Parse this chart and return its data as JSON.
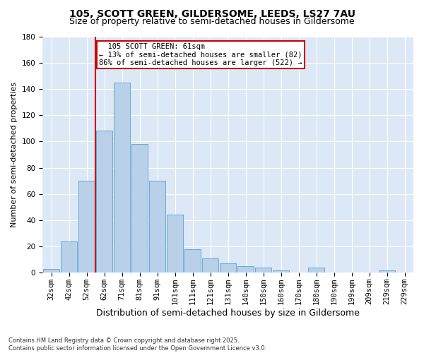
{
  "title1": "105, SCOTT GREEN, GILDERSOME, LEEDS, LS27 7AU",
  "title2": "Size of property relative to semi-detached houses in Gildersome",
  "xlabel": "Distribution of semi-detached houses by size in Gildersome",
  "ylabel": "Number of semi-detached properties",
  "categories": [
    "32sqm",
    "42sqm",
    "52sqm",
    "62sqm",
    "71sqm",
    "81sqm",
    "91sqm",
    "101sqm",
    "111sqm",
    "121sqm",
    "131sqm",
    "140sqm",
    "150sqm",
    "160sqm",
    "170sqm",
    "180sqm",
    "190sqm",
    "199sqm",
    "209sqm",
    "219sqm",
    "229sqm"
  ],
  "values": [
    3,
    24,
    70,
    108,
    145,
    98,
    70,
    44,
    18,
    11,
    7,
    5,
    4,
    2,
    0,
    4,
    0,
    0,
    0,
    2,
    0
  ],
  "bar_color": "#b8d0e8",
  "bar_edge_color": "#6aaad4",
  "vline_index": 3,
  "vline_color": "#cc0000",
  "annotation_box_color": "#cc0000",
  "ylim": [
    0,
    180
  ],
  "yticks": [
    0,
    20,
    40,
    60,
    80,
    100,
    120,
    140,
    160,
    180
  ],
  "bg_color": "#dce8f5",
  "footnote": "Contains HM Land Registry data © Crown copyright and database right 2025.\nContains public sector information licensed under the Open Government Licence v3.0.",
  "title1_fontsize": 10,
  "title2_fontsize": 9,
  "xlabel_fontsize": 9,
  "ylabel_fontsize": 8,
  "tick_fontsize": 7.5,
  "annot_fontsize": 7.5,
  "footnote_fontsize": 6,
  "property_label": "105 SCOTT GREEN: 61sqm",
  "smaller_pct": 13,
  "smaller_count": 82,
  "larger_pct": 86,
  "larger_count": 522
}
